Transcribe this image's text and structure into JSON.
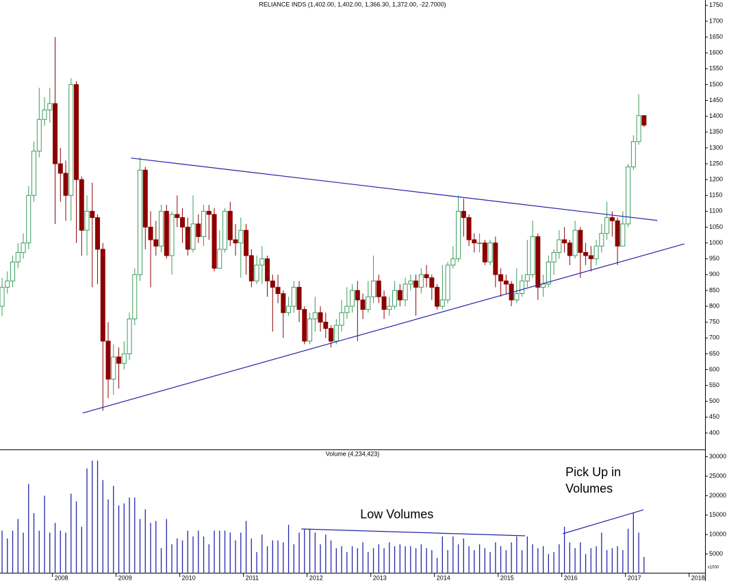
{
  "chart_data": [
    {
      "type": "candlestick",
      "title": "RELIANCE INDS (1,402.00, 1,402.00, 1,366.30, 1,372.00, -22.7000)",
      "up_color": "#3a9a5a",
      "down_color": "#8b0000",
      "xlim": [
        -0.39,
        132.5
      ],
      "ylim": [
        348,
        1767
      ],
      "yticks": [
        400,
        450,
        500,
        550,
        600,
        650,
        700,
        750,
        800,
        850,
        900,
        950,
        1000,
        1050,
        1100,
        1150,
        1200,
        1250,
        1300,
        1350,
        1400,
        1450,
        1500,
        1550,
        1600,
        1650,
        1700,
        1750
      ],
      "open": [
        800,
        860,
        880,
        940,
        970,
        1000,
        1150,
        1290,
        1390,
        1420,
        1440,
        1250,
        1220,
        1150,
        1500,
        1200,
        1040,
        1100,
        1080,
        980,
        690,
        570,
        640,
        620,
        650,
        760,
        900,
        1230,
        1050,
        1010,
        990,
        1100,
        960,
        1090,
        1080,
        1050,
        980,
        1060,
        1020,
        1100,
        1090,
        920,
        980,
        1100,
        1010,
        1000,
        1040,
        960,
        880,
        930,
        950,
        880,
        860,
        840,
        780,
        800,
        860,
        790,
        690,
        760,
        780,
        750,
        730,
        690,
        740,
        780,
        800,
        850,
        820,
        790,
        830,
        880,
        830,
        790,
        800,
        850,
        820,
        870,
        880,
        860,
        900,
        890,
        860,
        800,
        820,
        930,
        950,
        1100,
        1080,
        1010,
        1000,
        1000,
        940,
        1000,
        900,
        880,
        870,
        820,
        840,
        880,
        900,
        1020,
        860,
        870,
        940,
        970,
        1010,
        1000,
        960,
        1040,
        970,
        960,
        950,
        990,
        1030,
        1080,
        1070,
        990,
        1060,
        1240,
        1320,
        1402
      ],
      "high": [
        890,
        910,
        960,
        1000,
        1030,
        1180,
        1320,
        1490,
        1460,
        1490,
        1650,
        1300,
        1260,
        1520,
        1510,
        1210,
        1150,
        1190,
        1090,
        1000,
        750,
        680,
        670,
        690,
        780,
        920,
        1270,
        1240,
        1100,
        1070,
        1120,
        1120,
        1100,
        1150,
        1110,
        1080,
        1150,
        1090,
        1120,
        1120,
        1110,
        1040,
        1110,
        1130,
        1060,
        1080,
        1060,
        980,
        960,
        990,
        960,
        900,
        900,
        850,
        830,
        880,
        880,
        800,
        780,
        830,
        800,
        780,
        740,
        760,
        820,
        860,
        870,
        880,
        840,
        880,
        960,
        900,
        850,
        830,
        880,
        870,
        890,
        900,
        900,
        920,
        930,
        900,
        870,
        930,
        940,
        990,
        1150,
        1140,
        1090,
        1030,
        1030,
        1010,
        1010,
        1020,
        920,
        900,
        880,
        920,
        900,
        1010,
        1070,
        1030,
        900,
        960,
        980,
        1040,
        1050,
        1010,
        1070,
        1050,
        1000,
        990,
        1010,
        1060,
        1130,
        1100,
        1080,
        1100,
        1250,
        1340,
        1470,
        1402
      ],
      "low": [
        770,
        840,
        860,
        920,
        950,
        980,
        1130,
        1270,
        1370,
        1380,
        1060,
        1130,
        1070,
        1070,
        1000,
        960,
        960,
        860,
        870,
        470,
        510,
        520,
        540,
        600,
        630,
        740,
        880,
        980,
        860,
        960,
        970,
        950,
        900,
        1050,
        1000,
        960,
        970,
        1000,
        990,
        1010,
        910,
        920,
        970,
        990,
        960,
        890,
        900,
        860,
        870,
        870,
        830,
        720,
        810,
        700,
        770,
        780,
        750,
        680,
        680,
        720,
        720,
        700,
        670,
        680,
        720,
        760,
        780,
        690,
        760,
        780,
        810,
        810,
        760,
        770,
        790,
        800,
        800,
        850,
        770,
        840,
        860,
        820,
        790,
        790,
        810,
        920,
        940,
        1020,
        990,
        970,
        970,
        930,
        930,
        860,
        830,
        840,
        800,
        810,
        830,
        860,
        890,
        820,
        830,
        860,
        900,
        950,
        970,
        930,
        950,
        890,
        930,
        910,
        930,
        970,
        1010,
        1020,
        930,
        1000,
        1050,
        1230,
        1310,
        1366.3
      ],
      "close": [
        860,
        880,
        940,
        970,
        1000,
        1150,
        1290,
        1390,
        1420,
        1440,
        1250,
        1220,
        1150,
        1500,
        1200,
        1040,
        1100,
        1080,
        980,
        690,
        570,
        640,
        620,
        650,
        760,
        900,
        1230,
        1050,
        1010,
        990,
        1100,
        960,
        1090,
        1080,
        1050,
        980,
        1060,
        1020,
        1100,
        1090,
        920,
        980,
        1100,
        1010,
        1000,
        1040,
        960,
        880,
        930,
        950,
        880,
        860,
        840,
        780,
        800,
        860,
        790,
        690,
        760,
        780,
        750,
        730,
        690,
        740,
        780,
        800,
        850,
        820,
        790,
        830,
        880,
        830,
        790,
        800,
        850,
        820,
        870,
        880,
        860,
        900,
        890,
        860,
        800,
        820,
        930,
        950,
        1100,
        1080,
        1010,
        1000,
        1000,
        940,
        1000,
        900,
        880,
        870,
        820,
        840,
        880,
        900,
        1020,
        860,
        870,
        940,
        970,
        1010,
        1000,
        960,
        1040,
        970,
        960,
        950,
        990,
        1030,
        1080,
        1070,
        990,
        1060,
        1240,
        1320,
        1402,
        1372
      ],
      "trendlines": [
        {
          "color": "#2222aa",
          "from": [
            24.3,
            1268
          ],
          "to": [
            123.5,
            1071
          ]
        },
        {
          "color": "#2222aa",
          "from": [
            15.2,
            463
          ],
          "to": [
            128.6,
            997
          ]
        }
      ]
    },
    {
      "type": "bar",
      "title": "Volume (4,234,423)",
      "unit_label": "x1000",
      "color": "#2222aa",
      "xlim": [
        -0.39,
        132.5
      ],
      "ylim": [
        0,
        31690
      ],
      "yticks": [
        5000,
        10000,
        15000,
        20000,
        25000,
        30000
      ],
      "xticks": [
        {
          "value": 9.5,
          "label": "2008"
        },
        {
          "value": 21.5,
          "label": "2009"
        },
        {
          "value": 33.5,
          "label": "2010"
        },
        {
          "value": 45.5,
          "label": "2011"
        },
        {
          "value": 57.5,
          "label": "2012"
        },
        {
          "value": 69.5,
          "label": "2013"
        },
        {
          "value": 81.5,
          "label": "2014"
        },
        {
          "value": 93.5,
          "label": "2015"
        },
        {
          "value": 105.5,
          "label": "2016"
        },
        {
          "value": 117.5,
          "label": "2017"
        },
        {
          "value": 129.5,
          "label": "2018"
        }
      ],
      "values": [
        11000,
        9000,
        11000,
        14000,
        10500,
        23000,
        15500,
        11000,
        20000,
        10500,
        13000,
        11000,
        10500,
        20500,
        18500,
        12000,
        27000,
        29000,
        29000,
        24000,
        19000,
        22500,
        17500,
        18000,
        19500,
        19500,
        14000,
        16500,
        13000,
        13500,
        6500,
        14000,
        7500,
        9000,
        8500,
        11000,
        9500,
        11000,
        9500,
        7500,
        11000,
        11000,
        11000,
        10500,
        8500,
        10500,
        13500,
        9000,
        5500,
        10000,
        7000,
        8500,
        8500,
        8000,
        12500,
        7500,
        10500,
        11500,
        11500,
        10500,
        7500,
        10000,
        8500,
        6500,
        7000,
        5500,
        7000,
        6500,
        8000,
        5500,
        6500,
        7500,
        6500,
        8000,
        7000,
        7500,
        7000,
        7000,
        6500,
        7500,
        6500,
        6000,
        4000,
        9500,
        6000,
        9500,
        7500,
        9000,
        7000,
        6000,
        7500,
        6500,
        5500,
        8000,
        7000,
        6000,
        8000,
        9500,
        6000,
        9500,
        7500,
        6500,
        7000,
        5000,
        5500,
        7500,
        12000,
        8000,
        6500,
        8000,
        5000,
        6500,
        7000,
        10500,
        6000,
        6500,
        7000,
        6000,
        11500,
        15500,
        10500,
        4234.423
      ],
      "trendlines": [
        {
          "color": "#2222aa",
          "from": [
            56.4,
            11440
          ],
          "to": [
            98.6,
            9680
          ]
        },
        {
          "color": "#2222aa",
          "from": [
            105.7,
            10210
          ],
          "to": [
            120.9,
            16370
          ]
        }
      ],
      "annotations": [
        {
          "lines": [
            "Low Volumes"
          ],
          "color": "#2222cc",
          "at": [
            67.5,
            15000
          ]
        },
        {
          "lines": [
            "Pick Up in",
            "Volumes"
          ],
          "color": "#2222cc",
          "at": [
            106.2,
            25800
          ]
        }
      ]
    }
  ]
}
